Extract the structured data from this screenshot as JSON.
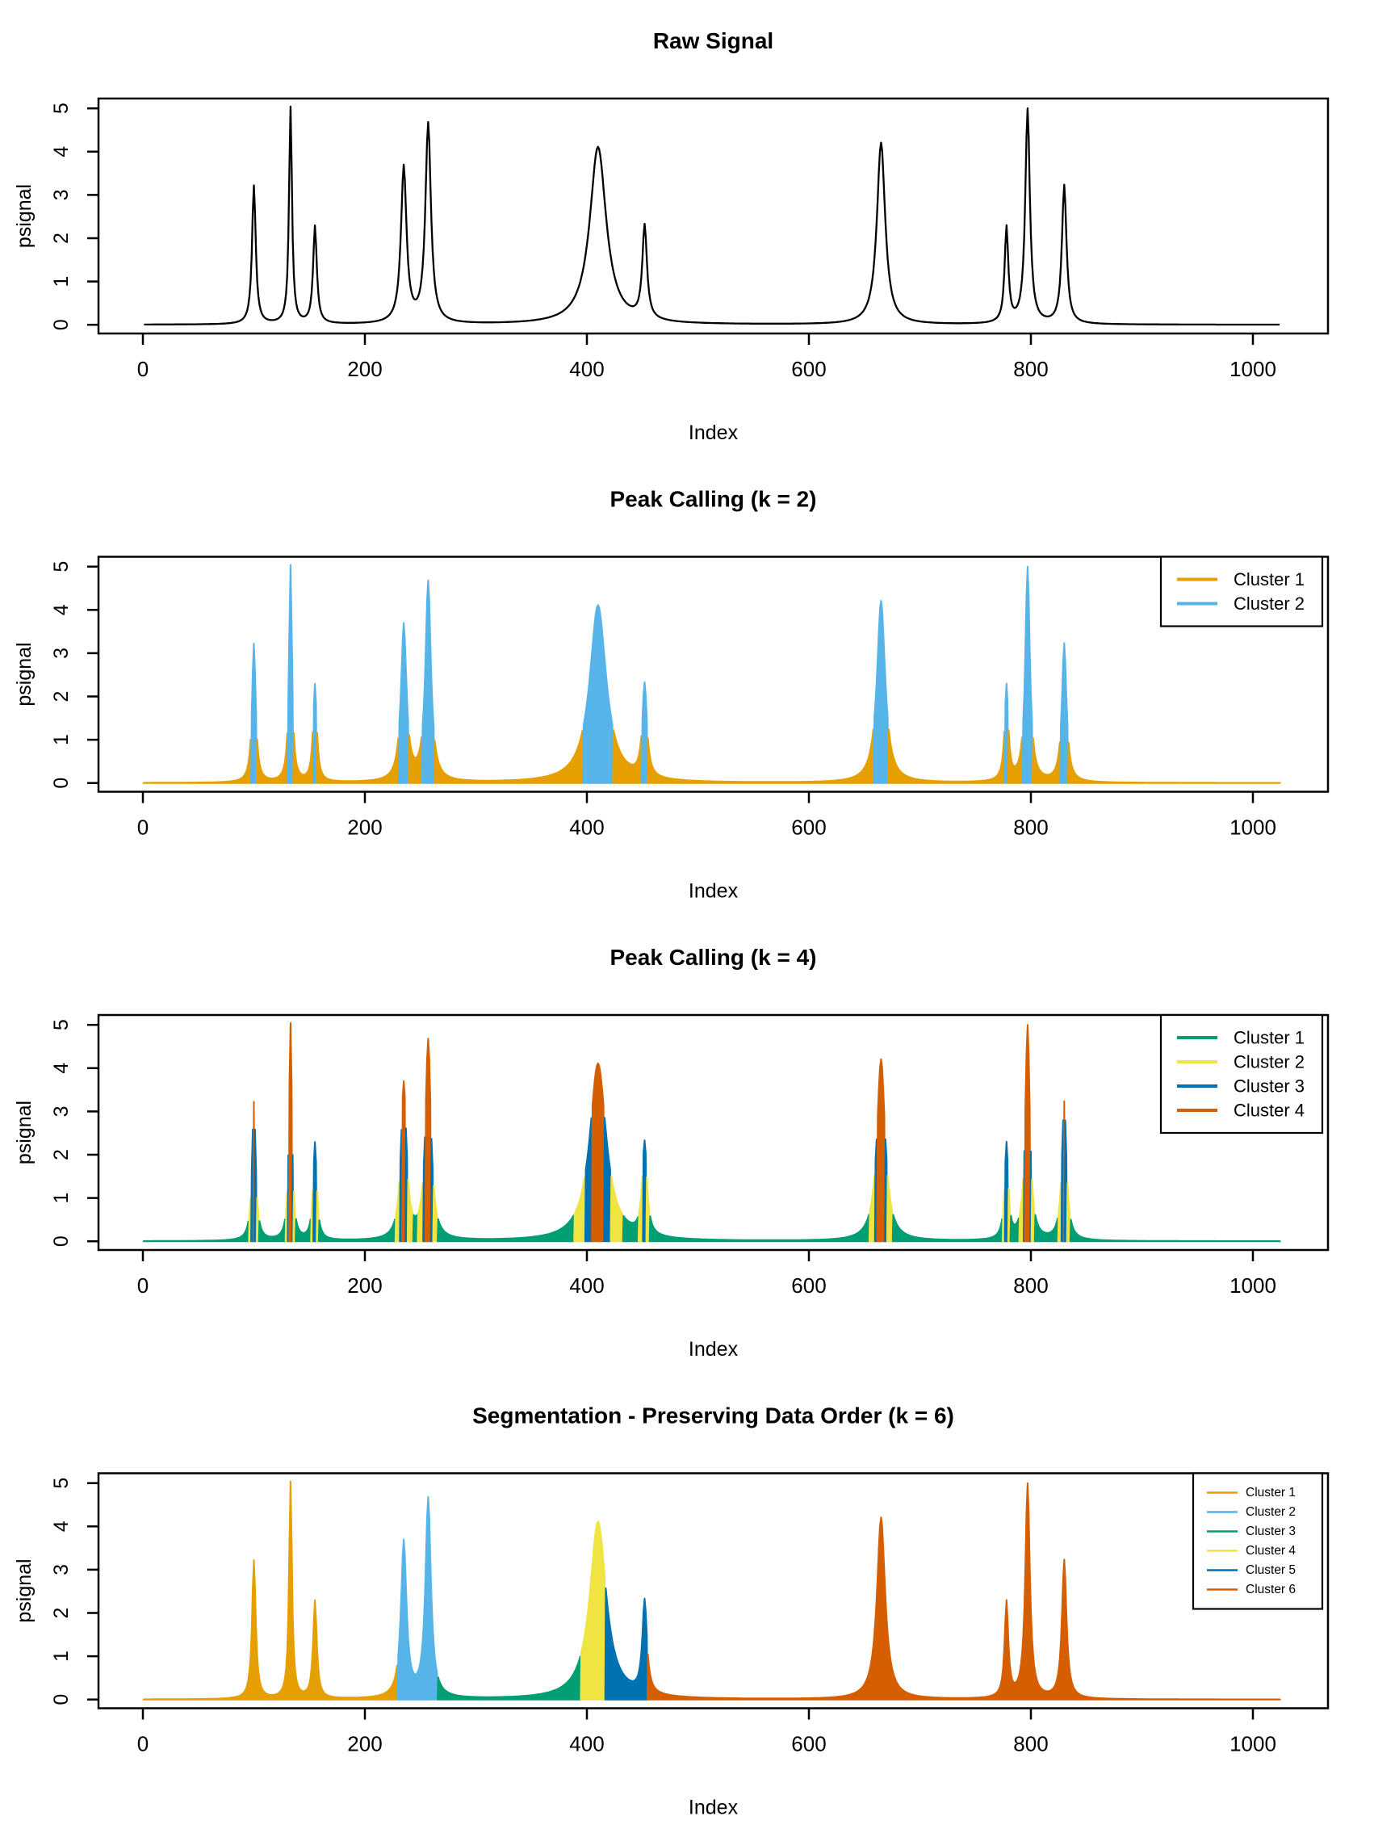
{
  "chart_data": {
    "type": "line",
    "description": "Four stacked R-style panels showing a peak signal and k-means cluster colorings",
    "xlabel": "Index",
    "ylabel": "psignal",
    "x_ticks": [
      0,
      200,
      400,
      600,
      800,
      1000
    ],
    "y_ticks": [
      0,
      1,
      2,
      3,
      4,
      5
    ],
    "xlim": [
      1,
      1024
    ],
    "ylim": [
      0,
      5
    ],
    "n_points": 1024,
    "signal_model": "y(x) = sum of Lorentzian peaks h / (1 + ((x - c)/g)^2)",
    "signal_peaks": [
      {
        "center": 100,
        "height": 3.2,
        "gamma": 2.0
      },
      {
        "center": 133,
        "height": 5.0,
        "gamma": 1.6
      },
      {
        "center": 155,
        "height": 2.25,
        "gamma": 2.0
      },
      {
        "center": 235,
        "height": 3.6,
        "gamma": 3.0
      },
      {
        "center": 257,
        "height": 4.6,
        "gamma": 3.0
      },
      {
        "center": 410,
        "height": 4.1,
        "gamma": 9.0
      },
      {
        "center": 452,
        "height": 2.15,
        "gamma": 2.5
      },
      {
        "center": 665,
        "height": 4.2,
        "gamma": 4.5
      },
      {
        "center": 778,
        "height": 2.2,
        "gamma": 2.0
      },
      {
        "center": 797,
        "height": 4.95,
        "gamma": 2.5
      },
      {
        "center": 830,
        "height": 3.2,
        "gamma": 2.5
      }
    ],
    "panels": [
      {
        "title": "Raw Signal",
        "mode": "raw",
        "line_color": "#000000",
        "legend": null
      },
      {
        "title": "Peak Calling (k = 2)",
        "mode": "amplitude",
        "amplitude_thresholds": [
          1.25
        ],
        "cluster_colors": [
          "#E69F00",
          "#56B4E9"
        ],
        "legend": [
          "Cluster 1",
          "Cluster 2"
        ],
        "legend_position": "topright",
        "legend_small": false
      },
      {
        "title": "Peak Calling (k = 4)",
        "mode": "amplitude",
        "amplitude_thresholds": [
          0.62,
          1.6,
          2.9
        ],
        "cluster_colors": [
          "#009E73",
          "#F0E442",
          "#0072B2",
          "#D55E00"
        ],
        "legend": [
          "Cluster 1",
          "Cluster 2",
          "Cluster 3",
          "Cluster 4"
        ],
        "legend_position": "topright",
        "legend_small": false
      },
      {
        "title": "Segmentation - Preserving Data Order (k = 6)",
        "mode": "order",
        "segment_boundaries": [
          230,
          266,
          395,
          417,
          455
        ],
        "cluster_colors": [
          "#E69F00",
          "#56B4E9",
          "#009E73",
          "#F0E442",
          "#0072B2",
          "#D55E00"
        ],
        "legend": [
          "Cluster 1",
          "Cluster 2",
          "Cluster 3",
          "Cluster 4",
          "Cluster 5",
          "Cluster 6"
        ],
        "legend_position": "topright",
        "legend_small": true
      }
    ],
    "axis_color": "#000000",
    "background_color": "#ffffff"
  }
}
